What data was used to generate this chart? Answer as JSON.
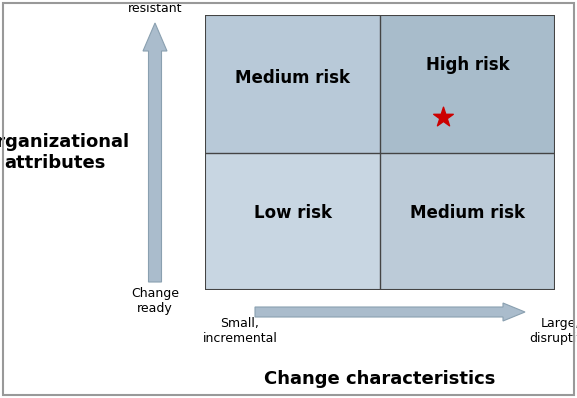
{
  "title_x": "Change characteristics",
  "title_y": "Organizational\nattributes",
  "quadrant_labels": {
    "top_left": "Medium risk",
    "top_right": "High risk",
    "bottom_left": "Low risk",
    "bottom_right": "Medium risk"
  },
  "quadrant_colors": {
    "top_left": "#b8c9d8",
    "top_right": "#a8bccb",
    "bottom_left": "#c8d6e2",
    "bottom_right": "#bccbd8"
  },
  "grid_line_color": "#444444",
  "border_color": "#444444",
  "arrow_facecolor": "#aabccc",
  "arrow_edgecolor": "#8aa0b0",
  "star_color": "#cc0000",
  "label_change_resistant": "Change\nresistant",
  "label_change_ready": "Change\nready",
  "label_small_incremental": "Small,\nincremental",
  "label_large_disruptive": "Large,\ndisruptive",
  "quadrant_label_fontsize": 12,
  "axis_title_fontsize": 13,
  "tick_label_fontsize": 9,
  "background_color": "#ffffff",
  "fig_border_color": "#999999"
}
